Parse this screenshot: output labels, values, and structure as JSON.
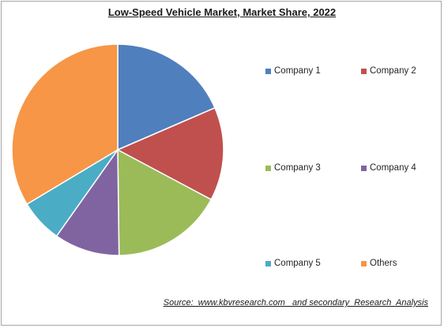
{
  "chart_data": {
    "type": "pie",
    "title": "Low-Speed Vehicle Market, Market Share, 2022",
    "categories": [
      "Company 1",
      "Company 2",
      "Company 3",
      "Company 4",
      "Company 5",
      "Others"
    ],
    "values": [
      18.5,
      14.3,
      17.0,
      10.0,
      6.6,
      33.6
    ],
    "colors": [
      "#4f7fbd",
      "#c0504d",
      "#9bbb59",
      "#8064a2",
      "#4bacc6",
      "#f79646"
    ],
    "legend_position": "right",
    "start_angle_deg": 0,
    "direction": "clockwise"
  },
  "source_text": "Source:  www.kbvresearch.com   and secondary  Research  Analysis"
}
